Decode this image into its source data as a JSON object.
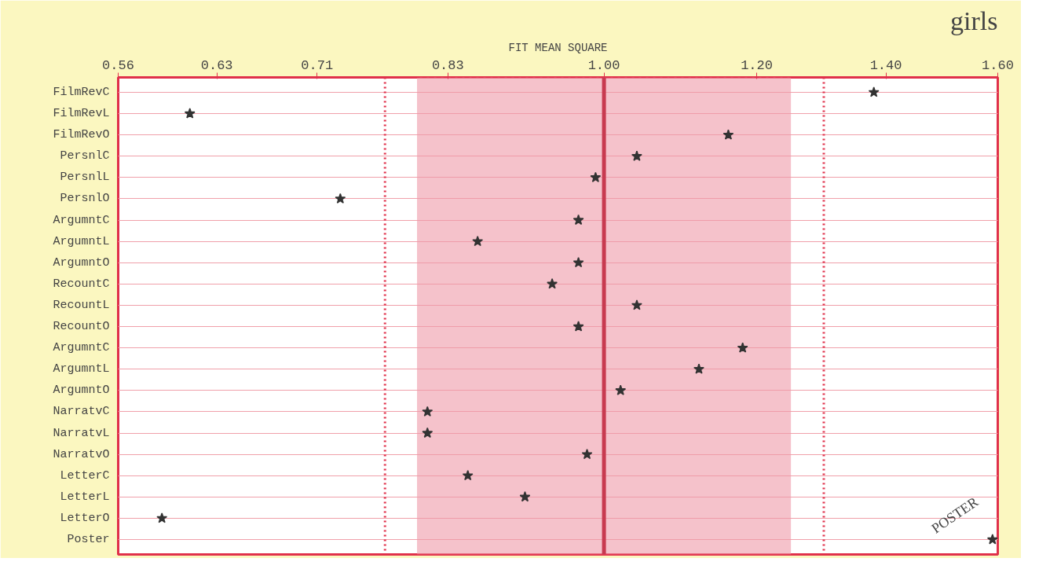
{
  "chart_data": {
    "type": "scatter",
    "title": "girls",
    "xlabel": "FIT MEAN SQUARE",
    "categories": [
      "FilmRevC",
      "FilmRevL",
      "FilmRevO",
      "PersnlC",
      "PersnlL",
      "PersnlO",
      "ArgumntC",
      "ArgumntL",
      "ArgumntO",
      "RecountC",
      "RecountL",
      "RecountO",
      "ArgumntC",
      "ArgumntL",
      "ArgumntO",
      "NarratvC",
      "NarratvL",
      "NarratvO",
      "LetterC",
      "LetterL",
      "LetterO",
      "Poster"
    ],
    "orientation": "horizontal",
    "values": [
      1.38,
      0.61,
      1.16,
      1.04,
      0.99,
      0.73,
      0.97,
      0.86,
      0.97,
      0.94,
      1.04,
      0.97,
      1.18,
      1.12,
      1.02,
      0.81,
      0.81,
      0.98,
      0.85,
      0.91,
      0.59,
      1.59
    ],
    "color": "#333333",
    "marker": "star",
    "log": "x",
    "xlim": [
      0.56,
      1.6
    ],
    "xticks": [
      {
        "value": 0.56,
        "label": "0.56"
      },
      {
        "value": 0.63,
        "label": "0.63"
      },
      {
        "value": 0.71,
        "label": "0.71"
      },
      {
        "value": 0.83,
        "label": "0.83"
      },
      {
        "value": 1.0,
        "label": "1.00"
      },
      {
        "value": 1.2,
        "label": "1.20"
      },
      {
        "value": 1.4,
        "label": "1.40"
      },
      {
        "value": 1.6,
        "label": "1.60"
      }
    ],
    "grid": "y",
    "ref_lines": [
      {
        "axis": "x",
        "value": 0.77,
        "label": null,
        "color": "#e0304a",
        "line_style": "dotted"
      },
      {
        "axis": "x",
        "value": 1.0,
        "label": null,
        "color": "#c83a50",
        "line_style": "solid"
      },
      {
        "axis": "x",
        "value": 1.3,
        "label": null,
        "color": "#e0304a",
        "line_style": "dotted"
      }
    ],
    "bands": [
      {
        "axis": "x",
        "from": 0.8,
        "to": 1.25,
        "label": null,
        "color": "#ef9aa8"
      }
    ],
    "annotations": [
      {
        "text": "POSTER",
        "x": 1.59,
        "y": "Poster"
      }
    ]
  }
}
